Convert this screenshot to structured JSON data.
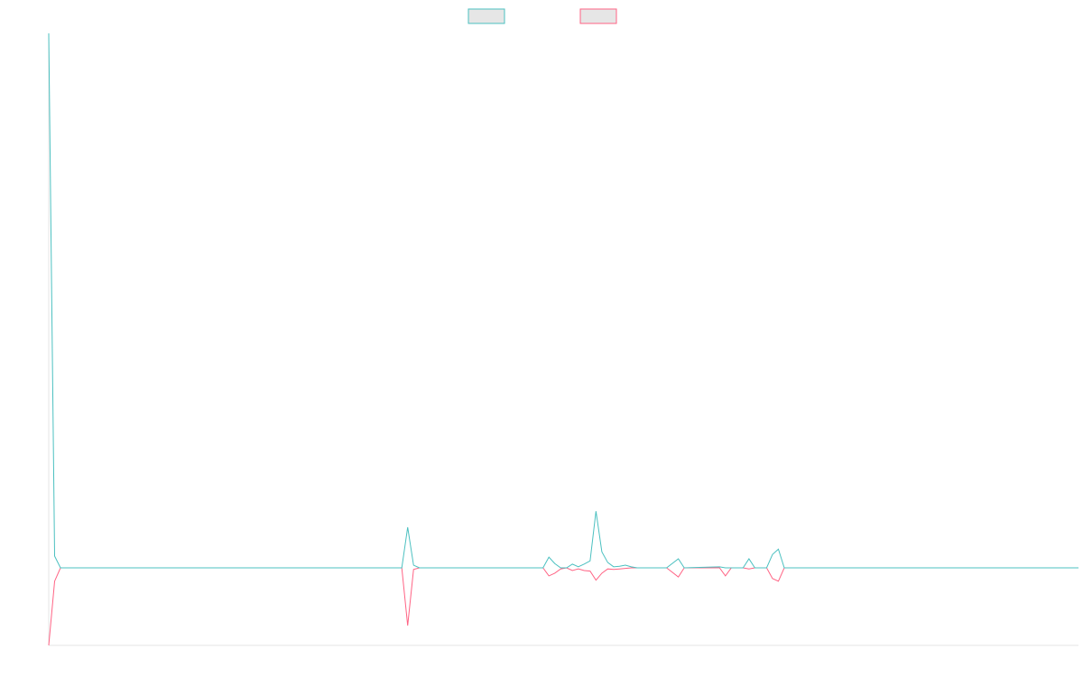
{
  "chart_data": {
    "type": "line",
    "x": [
      0,
      1,
      2,
      60,
      61,
      62,
      63,
      84,
      85,
      86,
      87,
      88,
      89,
      90,
      91,
      92,
      93,
      94,
      95,
      96,
      97,
      98,
      99,
      100,
      105,
      107,
      108,
      114,
      115,
      116,
      118,
      119,
      120,
      122,
      123,
      124,
      125,
      175
    ],
    "series": [
      {
        "color": "#4bc0c0",
        "values": [
          100,
          2.2,
          0,
          0,
          7.6,
          0.5,
          0,
          0,
          2,
          0.8,
          0,
          0,
          0.7,
          0.2,
          0.7,
          1.3,
          10.6,
          3,
          1,
          0.2,
          0.3,
          0.5,
          0.2,
          0,
          0,
          1.7,
          0,
          0.2,
          0,
          0,
          0,
          1.7,
          0,
          0,
          2.5,
          3.5,
          0,
          0
        ]
      },
      {
        "color": "#ff6384",
        "values": [
          -14.5,
          -2.5,
          0,
          0,
          -10.8,
          -0.3,
          0,
          0,
          -1.5,
          -1,
          -0.2,
          0,
          -0.5,
          -0.2,
          -0.5,
          -0.6,
          -2.3,
          -1,
          -0.2,
          -0.3,
          -0.2,
          -0.1,
          0,
          0,
          0,
          -1.7,
          0,
          0,
          -1.5,
          0,
          0,
          -0.2,
          0,
          0,
          -2,
          -2.5,
          0,
          0
        ]
      }
    ],
    "xlim": [
      0,
      175
    ],
    "ylim": [
      -14.5,
      100
    ],
    "grid": false,
    "legend": "top"
  }
}
